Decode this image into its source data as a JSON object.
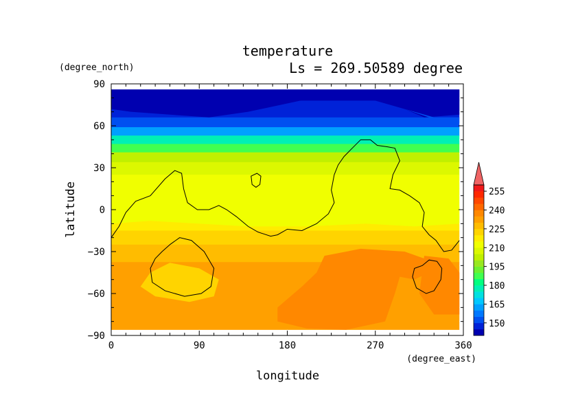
{
  "chart_data": {
    "type": "heatmap",
    "title": "temperature",
    "subtitle": "Ls = 269.50589 degree",
    "xlabel": "longitude",
    "ylabel": "latitude",
    "x_units": "(degree_east)",
    "y_units": "(degree_north)",
    "xlim": [
      0,
      360
    ],
    "ylim": [
      -90,
      90
    ],
    "x_ticks": [
      0,
      90,
      180,
      270,
      360
    ],
    "y_ticks": [
      -90,
      -60,
      -30,
      0,
      30,
      60,
      90
    ],
    "x_tick_labels": [
      "0",
      "90",
      "180",
      "270",
      "360"
    ],
    "y_tick_labels": [
      "−90",
      "−60",
      "−30",
      "0",
      "30",
      "60",
      "90"
    ],
    "data_extent": {
      "lon": [
        0,
        356
      ],
      "lat": [
        -86,
        86
      ]
    },
    "colorbar": {
      "levels": [
        140,
        145,
        150,
        155,
        160,
        165,
        170,
        175,
        180,
        185,
        190,
        195,
        200,
        205,
        210,
        215,
        220,
        225,
        230,
        235,
        240,
        245,
        250,
        255,
        260
      ],
      "tick_values": [
        150,
        165,
        180,
        195,
        210,
        225,
        240,
        255
      ],
      "tick_labels": [
        "150",
        "165",
        "180",
        "195",
        "210",
        "225",
        "240",
        "255"
      ],
      "colors": [
        "#0000b0",
        "#0022d8",
        "#0050f0",
        "#0078ff",
        "#00a0ff",
        "#00c8ff",
        "#00e0e0",
        "#00f0b4",
        "#00ff80",
        "#40ff50",
        "#6cf030",
        "#98e820",
        "#c0f000",
        "#dcf800",
        "#f0ff00",
        "#ffec00",
        "#ffd400",
        "#ffbc00",
        "#ffa000",
        "#ff8800",
        "#ff6800",
        "#ff4800",
        "#ff2800",
        "#f01818"
      ],
      "extend_max_color": "#f06464"
    },
    "temperature_by_latitude": [
      {
        "lat": 86,
        "t": 143
      },
      {
        "lat": 70,
        "t": 147
      },
      {
        "lat": 62,
        "t": 153
      },
      {
        "lat": 56,
        "t": 163
      },
      {
        "lat": 50,
        "t": 176
      },
      {
        "lat": 44,
        "t": 188
      },
      {
        "lat": 38,
        "t": 200
      },
      {
        "lat": 30,
        "t": 208
      },
      {
        "lat": 20,
        "t": 213
      },
      {
        "lat": 10,
        "t": 212
      },
      {
        "lat": 0,
        "t": 212
      },
      {
        "lat": -10,
        "t": 216
      },
      {
        "lat": -20,
        "t": 221
      },
      {
        "lat": -30,
        "t": 226
      },
      {
        "lat": -45,
        "t": 232
      },
      {
        "lat": -60,
        "t": 232
      },
      {
        "lat": -75,
        "t": 231
      },
      {
        "lat": -86,
        "t": 232
      }
    ],
    "regions": [
      {
        "t": 238,
        "points": [
          [
            218,
            -33
          ],
          [
            255,
            -28
          ],
          [
            300,
            -30
          ],
          [
            320,
            -35
          ],
          [
            325,
            -45
          ],
          [
            310,
            -50
          ],
          [
            295,
            -48
          ],
          [
            290,
            -60
          ],
          [
            280,
            -80
          ],
          [
            240,
            -86
          ],
          [
            200,
            -85
          ],
          [
            170,
            -80
          ],
          [
            170,
            -70
          ],
          [
            195,
            -55
          ],
          [
            210,
            -45
          ]
        ]
      },
      {
        "t": 237,
        "points": [
          [
            320,
            -33
          ],
          [
            345,
            -35
          ],
          [
            356,
            -45
          ],
          [
            356,
            -75
          ],
          [
            330,
            -75
          ],
          [
            315,
            -60
          ]
        ]
      },
      {
        "t": 224,
        "points": [
          [
            40,
            -45
          ],
          [
            60,
            -38
          ],
          [
            90,
            -42
          ],
          [
            110,
            -50
          ],
          [
            105,
            -62
          ],
          [
            80,
            -66
          ],
          [
            45,
            -62
          ],
          [
            30,
            -55
          ]
        ]
      },
      {
        "t": 214,
        "points": [
          [
            0,
            2
          ],
          [
            30,
            8
          ],
          [
            70,
            10
          ],
          [
            110,
            4
          ],
          [
            150,
            4
          ],
          [
            200,
            6
          ],
          [
            240,
            8
          ],
          [
            280,
            4
          ],
          [
            320,
            0
          ],
          [
            356,
            2
          ],
          [
            356,
            -10
          ],
          [
            310,
            -12
          ],
          [
            260,
            -10
          ],
          [
            200,
            -12
          ],
          [
            140,
            -12
          ],
          [
            90,
            -10
          ],
          [
            40,
            -8
          ],
          [
            0,
            -10
          ]
        ]
      },
      {
        "t": 142,
        "points": [
          [
            0,
            86
          ],
          [
            356,
            86
          ],
          [
            356,
            68
          ],
          [
            320,
            66
          ],
          [
            300,
            72
          ],
          [
            260,
            80
          ],
          [
            220,
            82
          ],
          [
            180,
            76
          ],
          [
            140,
            70
          ],
          [
            100,
            66
          ],
          [
            60,
            68
          ],
          [
            20,
            70
          ],
          [
            0,
            72
          ]
        ]
      },
      {
        "t": 152,
        "points": [
          [
            300,
            72
          ],
          [
            325,
            66
          ],
          [
            330,
            62
          ],
          [
            340,
            60
          ],
          [
            356,
            62
          ],
          [
            356,
            66
          ],
          [
            330,
            66
          ]
        ]
      }
    ],
    "contours": [
      {
        "label": "continent-outline",
        "closed": false,
        "points": [
          [
            0,
            -20
          ],
          [
            8,
            -12
          ],
          [
            15,
            -2
          ],
          [
            25,
            6
          ],
          [
            40,
            10
          ],
          [
            55,
            22
          ],
          [
            65,
            28
          ],
          [
            72,
            26
          ],
          [
            74,
            15
          ],
          [
            78,
            5
          ],
          [
            88,
            0
          ],
          [
            100,
            0
          ],
          [
            110,
            3
          ],
          [
            118,
            0
          ],
          [
            128,
            -5
          ],
          [
            140,
            -12
          ],
          [
            150,
            -16
          ],
          [
            163,
            -19
          ],
          [
            170,
            -18
          ],
          [
            180,
            -14
          ],
          [
            195,
            -15
          ],
          [
            210,
            -10
          ],
          [
            222,
            -3
          ],
          [
            228,
            5
          ],
          [
            225,
            14
          ],
          [
            228,
            25
          ],
          [
            232,
            32
          ],
          [
            238,
            38
          ],
          [
            245,
            43
          ],
          [
            255,
            50
          ],
          [
            265,
            50
          ],
          [
            272,
            46
          ],
          [
            282,
            45
          ],
          [
            290,
            44
          ],
          [
            295,
            35
          ],
          [
            288,
            25
          ],
          [
            285,
            15
          ],
          [
            295,
            14
          ],
          [
            305,
            10
          ],
          [
            315,
            5
          ],
          [
            320,
            -2
          ],
          [
            318,
            -12
          ],
          [
            325,
            -18
          ],
          [
            332,
            -22
          ],
          [
            340,
            -30
          ],
          [
            348,
            -29
          ],
          [
            356,
            -22
          ]
        ]
      },
      {
        "label": "island-north",
        "closed": true,
        "points": [
          [
            143,
            24
          ],
          [
            149,
            26
          ],
          [
            153,
            24
          ],
          [
            152,
            18
          ],
          [
            148,
            16
          ],
          [
            144,
            18
          ]
        ]
      },
      {
        "label": "crater-west",
        "closed": true,
        "points": [
          [
            60,
            -25
          ],
          [
            70,
            -20
          ],
          [
            82,
            -22
          ],
          [
            95,
            -30
          ],
          [
            105,
            -42
          ],
          [
            102,
            -55
          ],
          [
            92,
            -60
          ],
          [
            75,
            -62
          ],
          [
            55,
            -58
          ],
          [
            42,
            -52
          ],
          [
            40,
            -42
          ],
          [
            45,
            -35
          ],
          [
            52,
            -30
          ]
        ]
      },
      {
        "label": "crater-east",
        "closed": true,
        "points": [
          [
            318,
            -40
          ],
          [
            325,
            -36
          ],
          [
            333,
            -37
          ],
          [
            338,
            -42
          ],
          [
            337,
            -50
          ],
          [
            330,
            -58
          ],
          [
            322,
            -60
          ],
          [
            312,
            -56
          ],
          [
            308,
            -48
          ],
          [
            310,
            -42
          ]
        ]
      }
    ]
  }
}
